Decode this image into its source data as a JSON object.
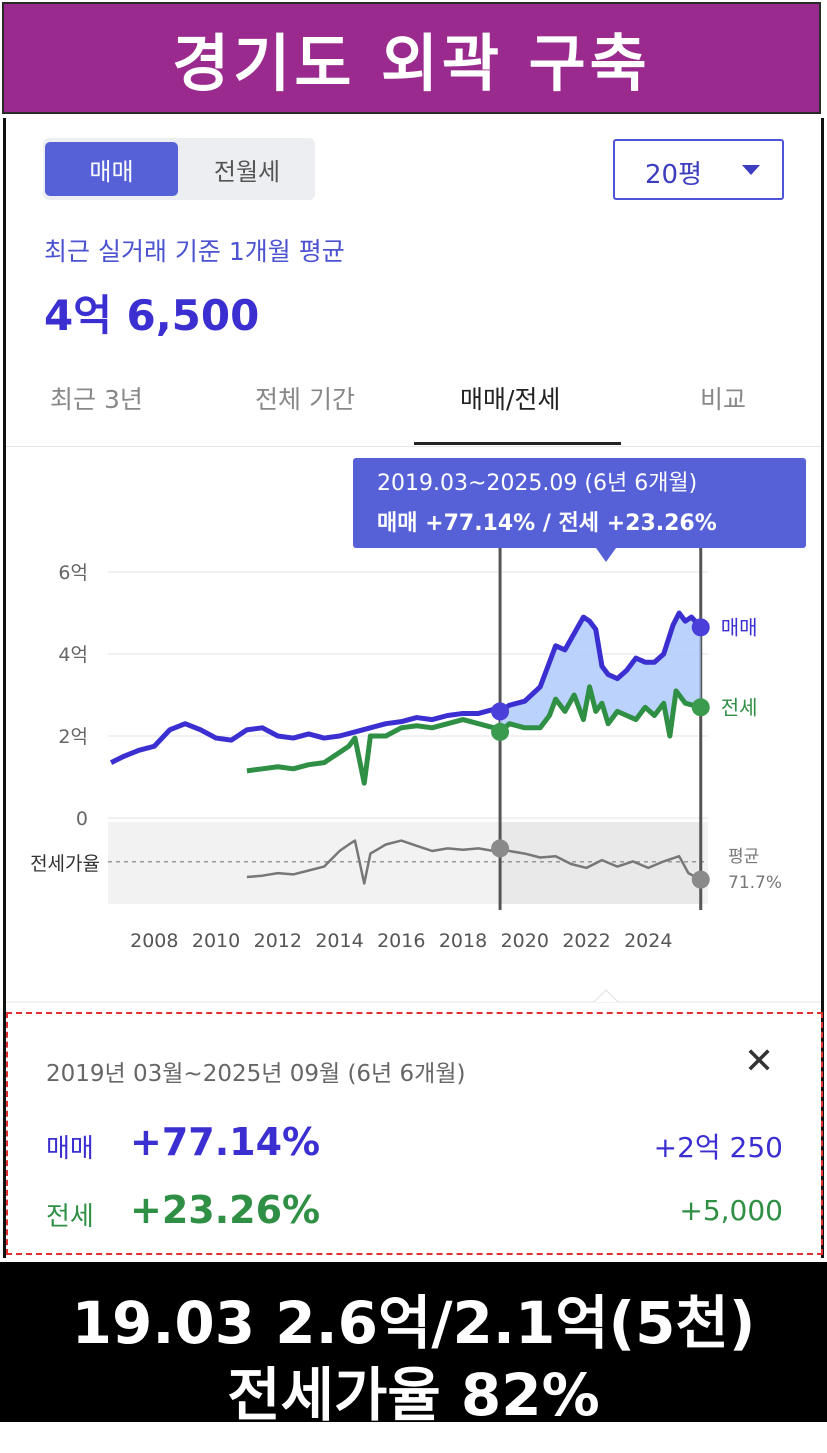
{
  "banner": {
    "title": "경기도 외곽 구축"
  },
  "toggle": {
    "sale": "매매",
    "rent": "전월세"
  },
  "size_select": {
    "value": "20평"
  },
  "summary": {
    "subtitle": "최근 실거래 기준 1개월 평균",
    "price": "4억 6,500"
  },
  "tabs": [
    "최근 3년",
    "전체 기간",
    "매매/전세",
    "비교"
  ],
  "tooltip": {
    "line1": "2019.03~2025.09 (6년 6개월)",
    "line2": "매매 +77.14%  /  전세 +23.26%"
  },
  "detail": {
    "period": "2019년 03월~2025년 09월 (6년 6개월)",
    "close": "✕",
    "sale": {
      "label": "매매",
      "pct": "+77.14%",
      "amount": "+2억 250"
    },
    "rent": {
      "label": "전세",
      "pct": "+23.26%",
      "amount": "+5,000"
    }
  },
  "footer": {
    "line1": "19.03  2.6억/2.1억(5천)",
    "line2": "전세가율  82%"
  },
  "colors": {
    "sale": "#3b2fd1",
    "rent": "#2f8f45",
    "ratio": "#777777",
    "accent": "#5661d8",
    "banner": "#9b2a8f"
  },
  "chart_data": {
    "type": "line",
    "ylim": [
      0,
      6
    ],
    "xlim": [
      2006.5,
      2026
    ],
    "yticks": [
      "6억",
      "4억",
      "2억",
      "0"
    ],
    "xticks": [
      "2008",
      "2010",
      "2012",
      "2014",
      "2016",
      "2018",
      "2020",
      "2022",
      "2024"
    ],
    "ratio_label": "전세가율",
    "ratio_avg_label": "평균",
    "ratio_avg_value": "71.7%",
    "selection": {
      "start": 2019.2,
      "end": 2025.7
    },
    "series": [
      {
        "name": "매매",
        "unit": "억",
        "x": [
          2006.6,
          2007.0,
          2007.5,
          2008.0,
          2008.5,
          2009.0,
          2009.5,
          2010.0,
          2010.5,
          2011.0,
          2011.5,
          2012.0,
          2012.5,
          2013.0,
          2013.5,
          2014.0,
          2014.5,
          2015.0,
          2015.5,
          2016.0,
          2016.5,
          2017.0,
          2017.5,
          2018.0,
          2018.5,
          2019.0,
          2019.2,
          2019.5,
          2020.0,
          2020.5,
          2020.8,
          2021.0,
          2021.3,
          2021.6,
          2021.9,
          2022.1,
          2022.3,
          2022.5,
          2022.7,
          2023.0,
          2023.3,
          2023.6,
          2023.9,
          2024.2,
          2024.5,
          2024.8,
          2025.0,
          2025.2,
          2025.4,
          2025.7
        ],
        "y": [
          1.35,
          1.5,
          1.65,
          1.75,
          2.15,
          2.3,
          2.15,
          1.95,
          1.9,
          2.15,
          2.2,
          2.0,
          1.95,
          2.05,
          1.95,
          2.0,
          2.1,
          2.2,
          2.3,
          2.35,
          2.45,
          2.4,
          2.5,
          2.55,
          2.55,
          2.65,
          2.6,
          2.75,
          2.85,
          3.2,
          3.8,
          4.2,
          4.1,
          4.5,
          4.9,
          4.8,
          4.6,
          3.7,
          3.5,
          3.4,
          3.6,
          3.9,
          3.8,
          3.8,
          4.0,
          4.7,
          5.0,
          4.8,
          4.9,
          4.65
        ]
      },
      {
        "name": "전세",
        "unit": "억",
        "x": [
          2011.0,
          2011.5,
          2012.0,
          2012.5,
          2013.0,
          2013.5,
          2014.0,
          2014.3,
          2014.5,
          2014.8,
          2015.0,
          2015.5,
          2016.0,
          2016.5,
          2017.0,
          2017.5,
          2018.0,
          2018.5,
          2019.0,
          2019.2,
          2019.5,
          2020.0,
          2020.5,
          2020.8,
          2021.0,
          2021.3,
          2021.6,
          2021.9,
          2022.1,
          2022.3,
          2022.5,
          2022.7,
          2023.0,
          2023.3,
          2023.6,
          2023.9,
          2024.2,
          2024.5,
          2024.7,
          2024.9,
          2025.2,
          2025.7
        ],
        "y": [
          1.15,
          1.2,
          1.25,
          1.2,
          1.3,
          1.35,
          1.6,
          1.75,
          1.95,
          0.85,
          2.0,
          2.0,
          2.2,
          2.25,
          2.2,
          2.3,
          2.4,
          2.3,
          2.2,
          2.1,
          2.3,
          2.2,
          2.2,
          2.5,
          2.9,
          2.6,
          3.0,
          2.4,
          3.2,
          2.6,
          2.8,
          2.3,
          2.6,
          2.5,
          2.4,
          2.7,
          2.5,
          2.8,
          2.0,
          3.1,
          2.8,
          2.7
        ]
      },
      {
        "name": "전세가율",
        "unit": "%",
        "x": [
          2011.0,
          2011.5,
          2012.0,
          2012.5,
          2013.0,
          2013.5,
          2014.0,
          2014.3,
          2014.5,
          2014.8,
          2015.0,
          2015.5,
          2016.0,
          2016.5,
          2017.0,
          2017.5,
          2018.0,
          2018.5,
          2019.0,
          2019.2,
          2019.5,
          2020.0,
          2020.5,
          2021.0,
          2021.5,
          2022.0,
          2022.5,
          2023.0,
          2023.5,
          2024.0,
          2024.5,
          2025.0,
          2025.3,
          2025.7
        ],
        "y": [
          60,
          61,
          63,
          62,
          65,
          68,
          80,
          85,
          88,
          55,
          78,
          85,
          88,
          84,
          80,
          82,
          81,
          82,
          80,
          82,
          80,
          78,
          75,
          76,
          70,
          67,
          73,
          68,
          72,
          67,
          72,
          76,
          63,
          58
        ]
      }
    ]
  }
}
